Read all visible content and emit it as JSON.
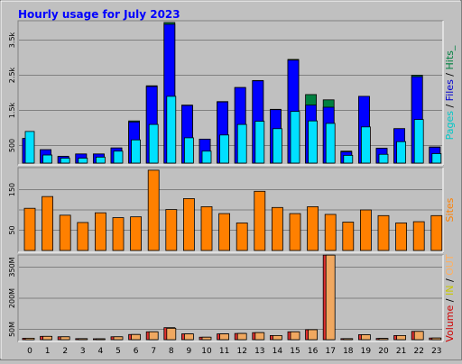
{
  "chart_data": {
    "type": "bar",
    "title": "Hourly usage for July 2023",
    "categories": [
      "0",
      "1",
      "2",
      "3",
      "4",
      "5",
      "6",
      "7",
      "8",
      "9",
      "10",
      "11",
      "12",
      "13",
      "14",
      "15",
      "16",
      "17",
      "18",
      "19",
      "20",
      "21",
      "22",
      "23"
    ],
    "panels": [
      {
        "id": "top",
        "axis_label_parts": [
          {
            "text": "Pages",
            "color": "#00c8c8"
          },
          {
            "text": " / ",
            "color": "#000000"
          },
          {
            "text": "Files",
            "color": "#0000d0"
          },
          {
            "text": " / ",
            "color": "#000000"
          },
          {
            "text": "Hits_",
            "color": "#008040"
          }
        ],
        "ylim": [
          0,
          4000
        ],
        "yticks": [
          500,
          1500,
          2500,
          3500
        ],
        "ytick_labels": [
          "500",
          "1.5k",
          "2.5k",
          "3.5k"
        ],
        "series": [
          {
            "name": "Hits_",
            "color": "#008040",
            "values": [
              700,
              380,
              190,
              260,
              260,
              430,
              1200,
              2200,
              4000,
              1650,
              680,
              1750,
              2150,
              2350,
              1530,
              2950,
              1950,
              1800,
              340,
              1900,
              420,
              980,
              2500,
              460
            ]
          },
          {
            "name": "Files",
            "color": "#0000ff",
            "values": [
              700,
              380,
              190,
              260,
              260,
              430,
              1170,
              2180,
              3950,
              1640,
              680,
              1740,
              2150,
              2340,
              1520,
              2930,
              1650,
              1590,
              320,
              1900,
              420,
              980,
              2460,
              450
            ]
          },
          {
            "name": "Pages",
            "color": "#00e0ff",
            "values": [
              900,
              230,
              140,
              140,
              170,
              340,
              660,
              1100,
              1900,
              720,
              340,
              800,
              1100,
              1190,
              980,
              1470,
              1200,
              1130,
              220,
              1030,
              250,
              610,
              1240,
              270
            ]
          }
        ]
      },
      {
        "id": "middle",
        "axis_label_parts": [
          {
            "text": "Sites",
            "color": "#ff8000"
          }
        ],
        "ylim": [
          0,
          200
        ],
        "yticks": [
          50,
          100,
          150
        ],
        "ytick_labels": [
          "50",
          "",
          "150"
        ],
        "series": [
          {
            "name": "Sites",
            "color": "#ff8000",
            "values": [
              104,
              133,
              87,
              69,
              93,
              81,
              83,
              198,
              101,
              128,
              108,
              91,
              68,
              146,
              106,
              91,
              108,
              89,
              70,
              100,
              86,
              68,
              71,
              86
            ]
          }
        ]
      },
      {
        "id": "bottom",
        "axis_label_parts": [
          {
            "text": "Volume",
            "color": "#d00000"
          },
          {
            "text": " / ",
            "color": "#000000"
          },
          {
            "text": "IN",
            "color": "#c8c800"
          },
          {
            "text": " / ",
            "color": "#000000"
          },
          {
            "text": "OUT",
            "color": "#ffb060"
          }
        ],
        "ylim": [
          0,
          400
        ],
        "yticks": [
          50,
          200,
          350
        ],
        "ytick_labels": [
          "50M",
          "200M",
          "350M"
        ],
        "series": [
          {
            "name": "Volume",
            "color": "#e03030",
            "values": [
              7,
              16,
              14,
              5,
              3,
              14,
              25,
              38,
              58,
              28,
              12,
              28,
              30,
              34,
              20,
              38,
              48,
              408,
              5,
              24,
              6,
              20,
              40,
              8
            ]
          },
          {
            "name": "OUT",
            "color": "#f0a860",
            "values": [
              7,
              16,
              14,
              5,
              3,
              14,
              25,
              38,
              55,
              28,
              12,
              28,
              30,
              34,
              20,
              38,
              48,
              408,
              5,
              24,
              6,
              20,
              40,
              8
            ]
          }
        ]
      }
    ]
  }
}
